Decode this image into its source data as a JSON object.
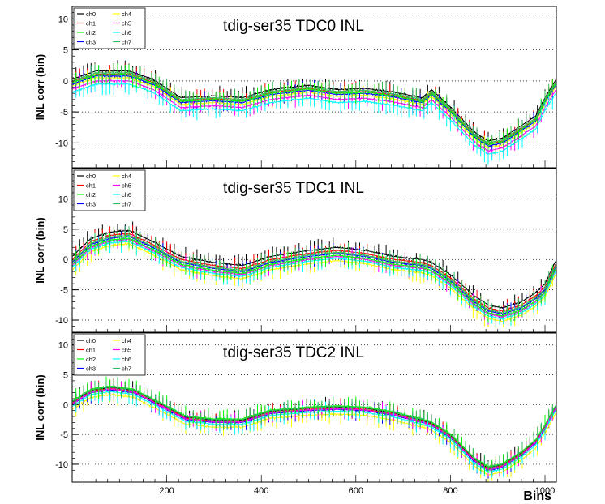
{
  "chart_data": [
    {
      "type": "line",
      "title": "tdig-ser35 TDC0 INL",
      "ylabel": "INL corr (bin)",
      "xlabel": "",
      "xlim": [
        0,
        1024
      ],
      "ylim": [
        -14,
        12
      ],
      "y_ticks": [
        -10,
        -5,
        0,
        5,
        10
      ],
      "x_ticks": [
        200,
        400,
        600,
        800,
        1000
      ],
      "show_x_tick_labels": false,
      "grid": "horizontal-dotted",
      "legend": "top-left",
      "series": [
        {
          "name": "ch0",
          "color": "#000000"
        },
        {
          "name": "ch1",
          "color": "#ff0000"
        },
        {
          "name": "ch2",
          "color": "#00ff00"
        },
        {
          "name": "ch3",
          "color": "#0000ff"
        },
        {
          "name": "ch4",
          "color": "#ffff00"
        },
        {
          "name": "ch5",
          "color": "#ff00ff"
        },
        {
          "name": "ch6",
          "color": "#00ffff"
        },
        {
          "name": "ch7",
          "color": "#33bb55"
        }
      ],
      "x": [
        0,
        50,
        120,
        170,
        230,
        300,
        360,
        420,
        500,
        560,
        620,
        680,
        740,
        760,
        800,
        850,
        880,
        910,
        950,
        980,
        1000,
        1024
      ],
      "base": [
        -0.5,
        0.8,
        0.8,
        -0.5,
        -3.5,
        -3.2,
        -3.5,
        -2.2,
        -1.5,
        -2.2,
        -2.0,
        -2.6,
        -3.5,
        -2.2,
        -5.0,
        -9.0,
        -10.5,
        -10.0,
        -8.0,
        -6.5,
        -3.5,
        -0.5
      ],
      "offsets": [
        0.8,
        0.3,
        0.2,
        0.0,
        -0.3,
        -0.8,
        -1.3,
        0.5
      ]
    },
    {
      "type": "line",
      "title": "tdig-ser35 TDC1 INL",
      "ylabel": "INL corr (bin)",
      "xlabel": "",
      "xlim": [
        0,
        1024
      ],
      "ylim": [
        -12,
        15
      ],
      "y_ticks": [
        -10,
        -5,
        0,
        5,
        10
      ],
      "x_ticks": [
        200,
        400,
        600,
        800,
        1000
      ],
      "show_x_tick_labels": false,
      "grid": "horizontal-dotted",
      "legend": "top-left",
      "series": [
        {
          "name": "ch0",
          "color": "#000000"
        },
        {
          "name": "ch1",
          "color": "#ff0000"
        },
        {
          "name": "ch2",
          "color": "#00ff00"
        },
        {
          "name": "ch3",
          "color": "#0000ff"
        },
        {
          "name": "ch4",
          "color": "#ffff00"
        },
        {
          "name": "ch5",
          "color": "#ff00ff"
        },
        {
          "name": "ch6",
          "color": "#00ffff"
        },
        {
          "name": "ch7",
          "color": "#33bb55"
        }
      ],
      "x": [
        0,
        40,
        80,
        120,
        170,
        230,
        300,
        360,
        420,
        500,
        560,
        620,
        680,
        740,
        760,
        800,
        850,
        880,
        910,
        950,
        980,
        1000,
        1024
      ],
      "base": [
        -0.5,
        2.5,
        3.5,
        3.8,
        2.0,
        -0.5,
        -1.5,
        -2.0,
        -0.5,
        0.5,
        1.0,
        0.5,
        -0.5,
        -1.0,
        -1.5,
        -3.5,
        -7.0,
        -8.5,
        -9.0,
        -8.0,
        -6.5,
        -5.0,
        -1.0
      ],
      "offsets": [
        1.0,
        0.5,
        -0.3,
        0.0,
        -1.2,
        -0.5,
        -0.8,
        0.2
      ]
    },
    {
      "type": "line",
      "title": "tdig-ser35 TDC2 INL",
      "ylabel": "INL corr (bin)",
      "xlabel": "Bins",
      "xlim": [
        0,
        1024
      ],
      "ylim": [
        -13,
        12
      ],
      "y_ticks": [
        -10,
        -5,
        0,
        5,
        10
      ],
      "x_ticks": [
        200,
        400,
        600,
        800,
        1000
      ],
      "show_x_tick_labels": true,
      "grid": "horizontal-dotted",
      "legend": "top-left",
      "series": [
        {
          "name": "ch0",
          "color": "#000000"
        },
        {
          "name": "ch1",
          "color": "#ff0000"
        },
        {
          "name": "ch2",
          "color": "#00ff00"
        },
        {
          "name": "ch3",
          "color": "#0000ff"
        },
        {
          "name": "ch4",
          "color": "#ffff00"
        },
        {
          "name": "ch5",
          "color": "#ff00ff"
        },
        {
          "name": "ch6",
          "color": "#00ffff"
        },
        {
          "name": "ch7",
          "color": "#33bb55"
        }
      ],
      "x": [
        0,
        40,
        80,
        130,
        180,
        240,
        300,
        360,
        420,
        500,
        560,
        620,
        680,
        740,
        760,
        800,
        850,
        880,
        910,
        950,
        980,
        1000,
        1024
      ],
      "base": [
        0.0,
        2.0,
        2.5,
        2.0,
        0.0,
        -2.5,
        -3.0,
        -3.0,
        -1.5,
        -1.0,
        -0.8,
        -1.0,
        -1.8,
        -3.0,
        -3.5,
        -5.5,
        -9.5,
        -11.0,
        -10.5,
        -8.5,
        -6.5,
        -4.0,
        -0.5
      ],
      "offsets": [
        0.4,
        0.2,
        0.6,
        0.0,
        -0.8,
        0.1,
        -0.3,
        0.5
      ]
    }
  ]
}
